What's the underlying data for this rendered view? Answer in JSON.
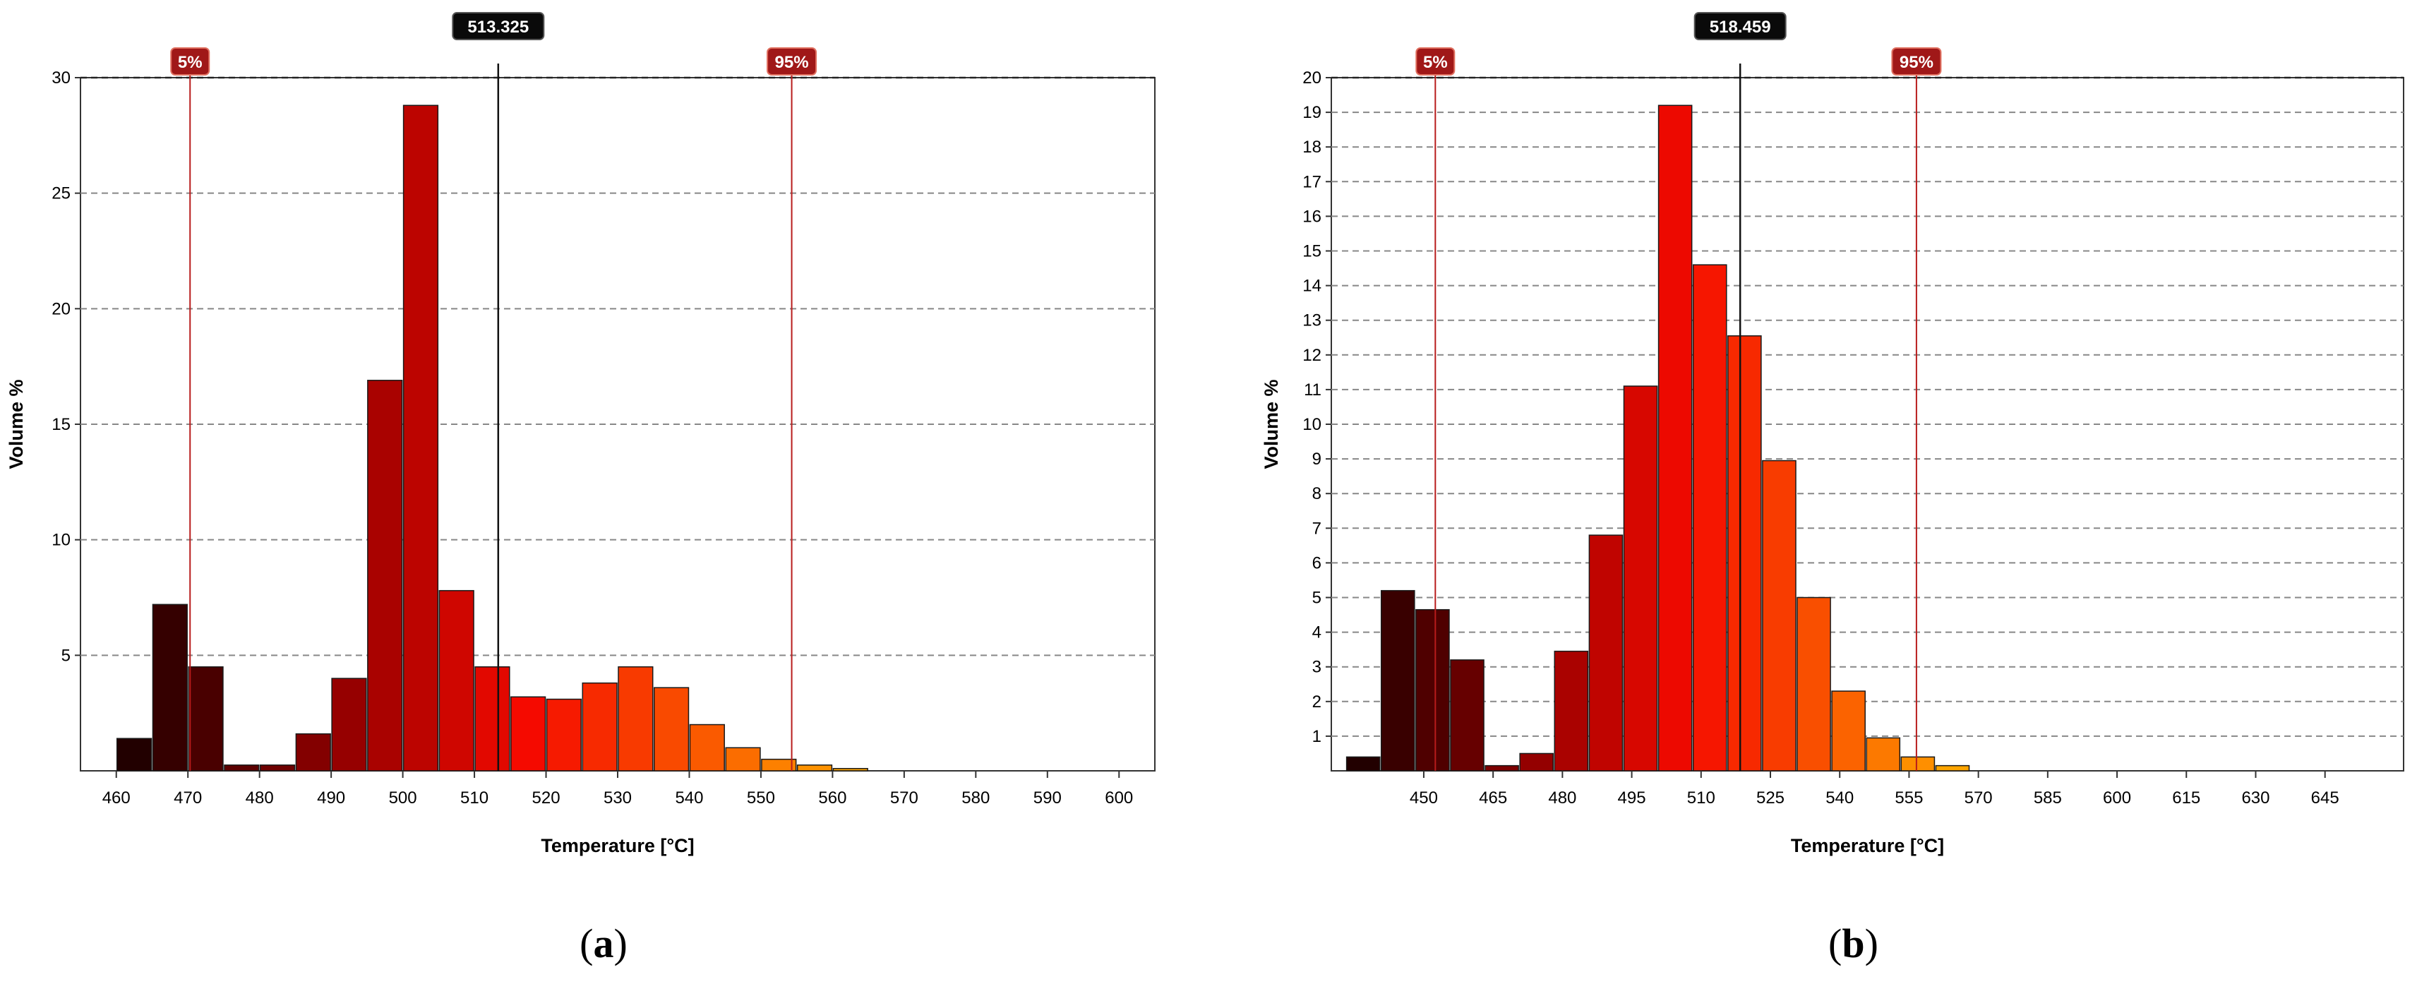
{
  "chart_data": [
    {
      "panel": "a",
      "type": "bar",
      "xlabel": "Temperature [°C]",
      "ylabel": "Volume %",
      "xlim": [
        455,
        605
      ],
      "ylim": [
        0,
        30
      ],
      "bin_width": 5,
      "x_ticks": [
        460,
        470,
        480,
        490,
        500,
        510,
        520,
        530,
        540,
        550,
        560,
        570,
        580,
        590,
        600
      ],
      "y_ticks": [
        5,
        10,
        15,
        20,
        25,
        30
      ],
      "grid": "horizontal dashed",
      "bars": [
        {
          "x": 462.5,
          "y": 1.4
        },
        {
          "x": 467.5,
          "y": 7.2
        },
        {
          "x": 472.5,
          "y": 4.5
        },
        {
          "x": 477.5,
          "y": 0.25
        },
        {
          "x": 482.5,
          "y": 0.25
        },
        {
          "x": 487.5,
          "y": 1.6
        },
        {
          "x": 492.5,
          "y": 4.0
        },
        {
          "x": 497.5,
          "y": 16.9
        },
        {
          "x": 502.5,
          "y": 28.8
        },
        {
          "x": 507.5,
          "y": 7.8
        },
        {
          "x": 512.5,
          "y": 4.5
        },
        {
          "x": 517.5,
          "y": 3.2
        },
        {
          "x": 522.5,
          "y": 3.1
        },
        {
          "x": 527.5,
          "y": 3.8
        },
        {
          "x": 532.5,
          "y": 4.5
        },
        {
          "x": 537.5,
          "y": 3.6
        },
        {
          "x": 542.5,
          "y": 2.0
        },
        {
          "x": 547.5,
          "y": 1.0
        },
        {
          "x": 552.5,
          "y": 0.5
        },
        {
          "x": 557.5,
          "y": 0.25
        },
        {
          "x": 562.5,
          "y": 0.1
        }
      ],
      "markers": [
        {
          "label": "5%",
          "x": 470.3,
          "style": "red"
        },
        {
          "label": "513.325",
          "x": 513.325,
          "style": "black"
        },
        {
          "label": "95%",
          "x": 554.3,
          "style": "red"
        }
      ],
      "caption": {
        "open": "(",
        "letter": "a",
        "close": ")"
      }
    },
    {
      "panel": "b",
      "type": "bar",
      "xlabel": "Temperature [°C]",
      "ylabel": "Volume %",
      "xlim": [
        430,
        662
      ],
      "ylim": [
        0,
        20
      ],
      "bin_width": 7.5,
      "x_ticks": [
        450,
        465,
        480,
        495,
        510,
        525,
        540,
        555,
        570,
        585,
        600,
        615,
        630,
        645
      ],
      "y_ticks": [
        1,
        2,
        3,
        4,
        5,
        6,
        7,
        8,
        9,
        10,
        11,
        12,
        13,
        14,
        15,
        16,
        17,
        18,
        19,
        20
      ],
      "grid": "horizontal dashed",
      "bars": [
        {
          "x": 436.9,
          "y": 0.4
        },
        {
          "x": 444.4,
          "y": 5.2
        },
        {
          "x": 451.9,
          "y": 4.65
        },
        {
          "x": 459.4,
          "y": 3.2
        },
        {
          "x": 466.9,
          "y": 0.15
        },
        {
          "x": 474.4,
          "y": 0.5
        },
        {
          "x": 481.9,
          "y": 3.45
        },
        {
          "x": 489.4,
          "y": 6.8
        },
        {
          "x": 496.9,
          "y": 11.1
        },
        {
          "x": 504.4,
          "y": 19.2
        },
        {
          "x": 511.9,
          "y": 14.6
        },
        {
          "x": 519.4,
          "y": 12.55
        },
        {
          "x": 526.9,
          "y": 8.95
        },
        {
          "x": 534.4,
          "y": 5.0
        },
        {
          "x": 541.9,
          "y": 2.3
        },
        {
          "x": 549.4,
          "y": 0.95
        },
        {
          "x": 556.9,
          "y": 0.4
        },
        {
          "x": 564.4,
          "y": 0.15
        }
      ],
      "markers": [
        {
          "label": "5%",
          "x": 452.5,
          "style": "red"
        },
        {
          "label": "518.459",
          "x": 518.459,
          "style": "black"
        },
        {
          "label": "95%",
          "x": 556.6,
          "style": "red"
        }
      ],
      "caption": {
        "open": "(",
        "letter": "b",
        "close": ")"
      }
    }
  ]
}
